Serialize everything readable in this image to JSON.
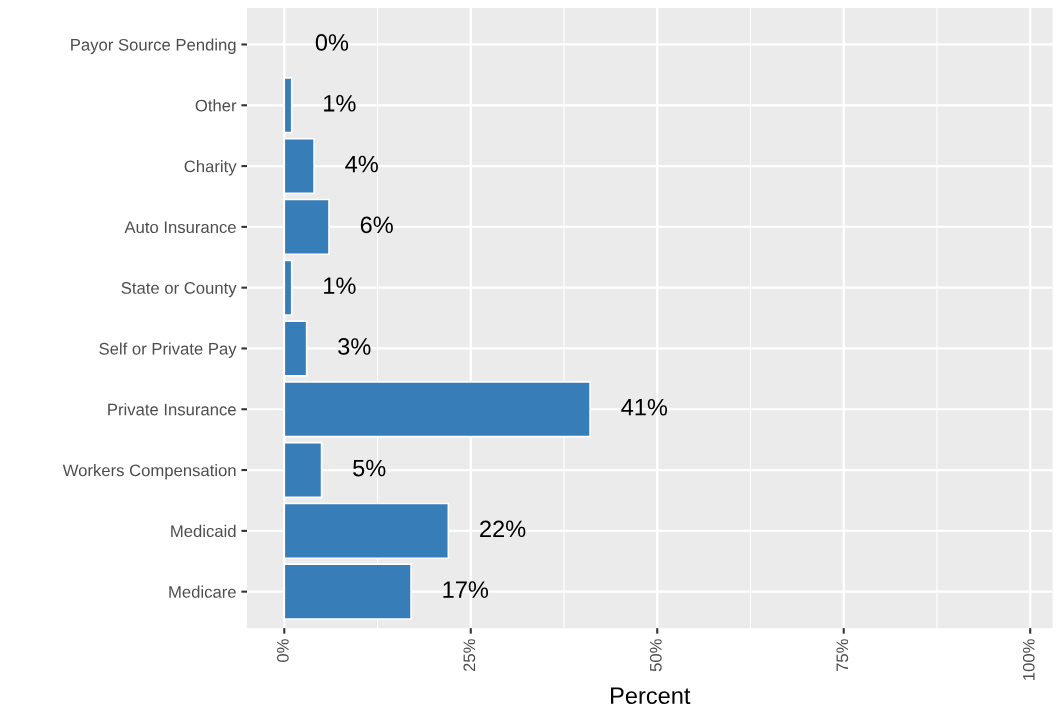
{
  "chart_data": {
    "type": "bar",
    "orientation": "horizontal",
    "xlabel": "Percent",
    "categories": [
      "Payor Source Pending",
      "Other",
      "Charity",
      "Auto Insurance",
      "State or County",
      "Self or Private Pay",
      "Private Insurance",
      "Workers Compensation",
      "Medicaid",
      "Medicare"
    ],
    "values": [
      0,
      1,
      4,
      6,
      1,
      3,
      41,
      5,
      22,
      17
    ],
    "value_labels": [
      "0%",
      "1%",
      "4%",
      "6%",
      "1%",
      "3%",
      "41%",
      "5%",
      "22%",
      "17%"
    ],
    "color": "#377eb8",
    "xlim": [
      -5,
      103
    ],
    "xticks": [
      {
        "value": 0,
        "label": "0%"
      },
      {
        "value": 12.5,
        "label": null
      },
      {
        "value": 25,
        "label": "25%"
      },
      {
        "value": 37.5,
        "label": null
      },
      {
        "value": 50,
        "label": "50%"
      },
      {
        "value": 62.5,
        "label": null
      },
      {
        "value": 75,
        "label": "75%"
      },
      {
        "value": 87.5,
        "label": null
      },
      {
        "value": 100,
        "label": "100%"
      }
    ],
    "grid": true
  }
}
